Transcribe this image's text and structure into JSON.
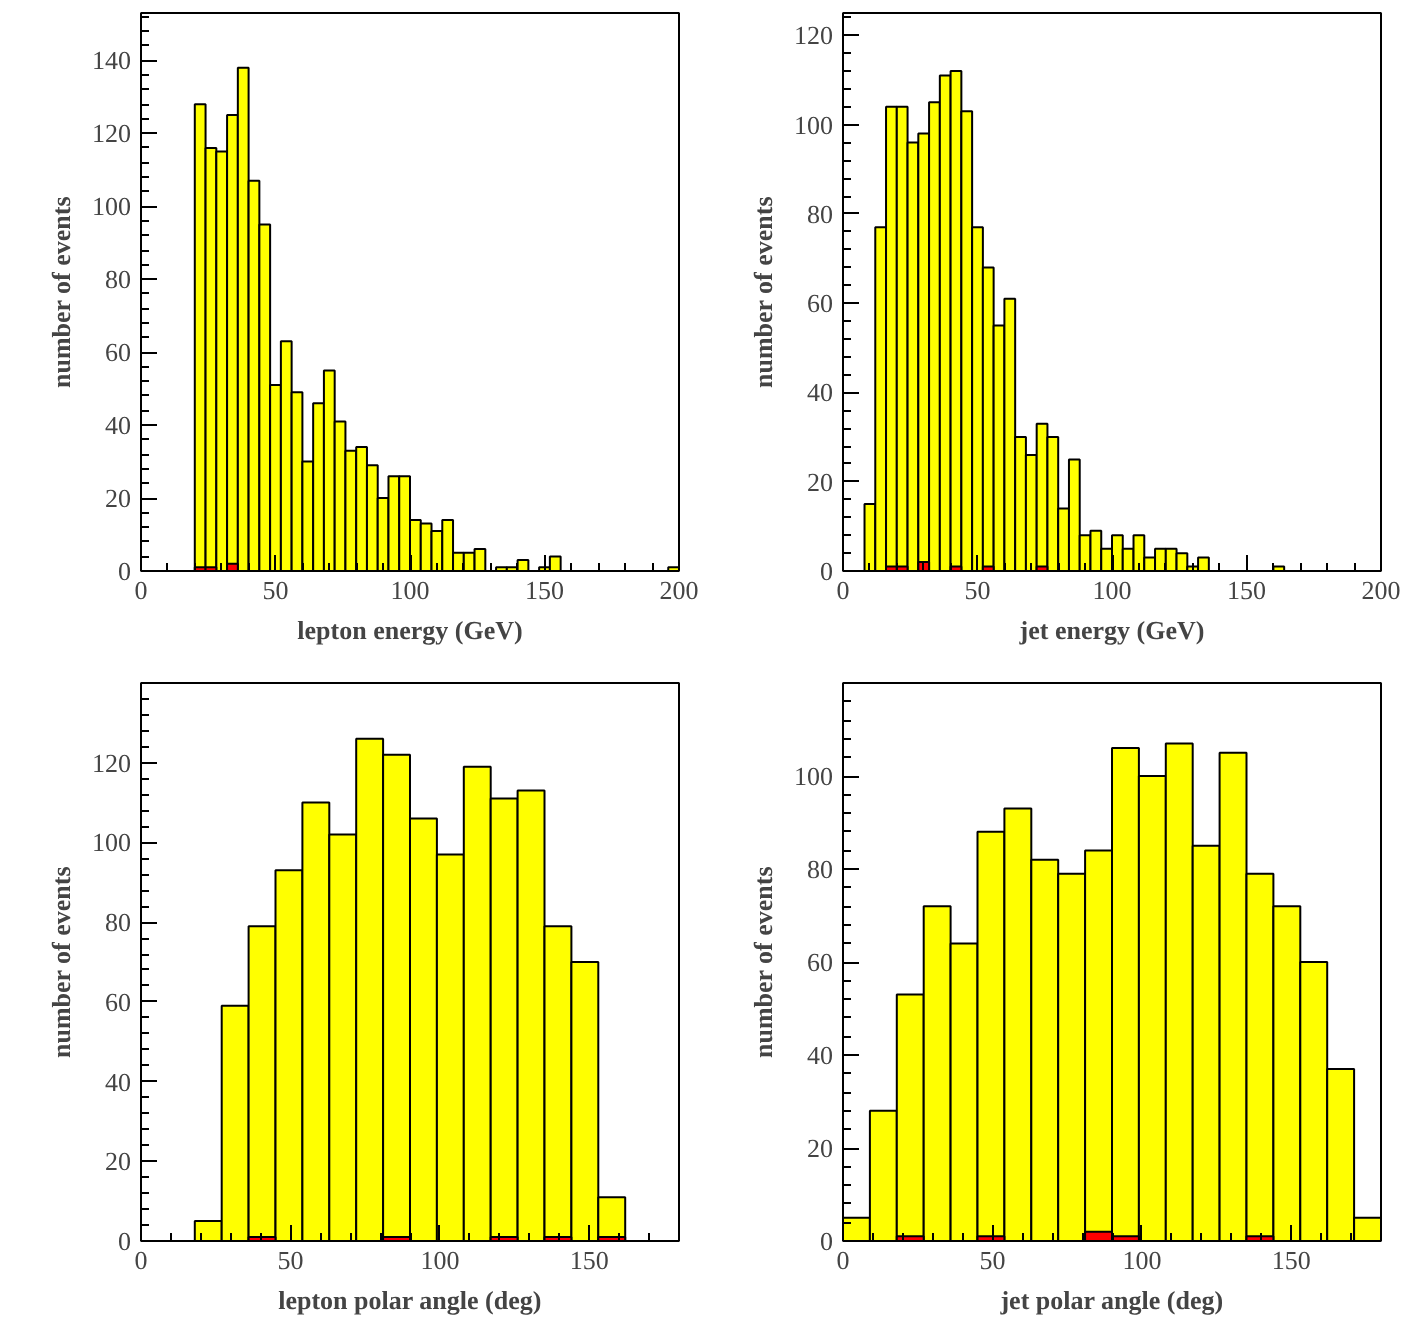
{
  "chart_data": [
    {
      "type": "histogram",
      "xlabel": "lepton energy (GeV)",
      "ylabel": "number of events",
      "xlim": [
        0,
        200
      ],
      "ylim": [
        0,
        153
      ],
      "xticks": [
        0,
        50,
        100,
        150,
        200
      ],
      "yticks": [
        0,
        20,
        40,
        60,
        80,
        100,
        120,
        140
      ],
      "grid": false,
      "bins": [
        20,
        24,
        28,
        32,
        36,
        40,
        44,
        48,
        52,
        56,
        60,
        64,
        68,
        72,
        76,
        80,
        84,
        88,
        92,
        96,
        100,
        104,
        108,
        112,
        116,
        120,
        124,
        128,
        132,
        136,
        140,
        144,
        148,
        152,
        156,
        160,
        164,
        168,
        172,
        176,
        180,
        184,
        188,
        192,
        196,
        200
      ],
      "series": [
        {
          "color": "#ffff00",
          "values": [
            128,
            116,
            115,
            125,
            138,
            107,
            95,
            51,
            63,
            49,
            30,
            46,
            55,
            41,
            33,
            34,
            29,
            20,
            26,
            26,
            14,
            13,
            11,
            14,
            5,
            5,
            6,
            0,
            1,
            1,
            3,
            0,
            1,
            4,
            0,
            0,
            0,
            0,
            0,
            0,
            0,
            0,
            0,
            0,
            1
          ]
        },
        {
          "color": "#ff0000",
          "values": [
            1,
            1,
            0,
            2,
            0,
            0,
            0,
            0,
            0,
            0,
            0,
            0,
            0,
            0,
            0,
            0,
            0,
            0,
            0,
            0,
            0,
            0,
            0,
            0,
            0,
            0,
            0,
            0,
            0,
            0,
            0,
            0,
            0,
            0,
            0,
            0,
            0,
            0,
            0,
            0,
            0,
            0,
            0,
            0,
            0
          ]
        }
      ]
    },
    {
      "type": "histogram",
      "xlabel": "jet energy (GeV)",
      "ylabel": "number of events",
      "xlim": [
        0,
        200
      ],
      "ylim": [
        0,
        125
      ],
      "xticks": [
        0,
        50,
        100,
        150,
        200
      ],
      "yticks": [
        0,
        20,
        40,
        60,
        80,
        100,
        120
      ],
      "grid": false,
      "bins": [
        8,
        12,
        16,
        20,
        24,
        28,
        32,
        36,
        40,
        44,
        48,
        52,
        56,
        60,
        64,
        68,
        72,
        76,
        80,
        84,
        88,
        92,
        96,
        100,
        104,
        108,
        112,
        116,
        120,
        124,
        128,
        132,
        136,
        140,
        144,
        148,
        152,
        156,
        160,
        164,
        168,
        172,
        176,
        180,
        184,
        188,
        192,
        196,
        200
      ],
      "series": [
        {
          "color": "#ffff00",
          "values": [
            15,
            77,
            104,
            104,
            96,
            98,
            105,
            111,
            112,
            103,
            77,
            68,
            55,
            61,
            30,
            26,
            33,
            30,
            14,
            25,
            8,
            9,
            5,
            8,
            5,
            8,
            3,
            5,
            5,
            4,
            1,
            3,
            0,
            0,
            0,
            0,
            0,
            0,
            1,
            0,
            0,
            0,
            0,
            0,
            0,
            0,
            0,
            0
          ]
        },
        {
          "color": "#ff0000",
          "values": [
            0,
            0,
            1,
            1,
            0,
            2,
            0,
            0,
            1,
            0,
            0,
            1,
            0,
            0,
            0,
            0,
            1,
            0,
            0,
            0,
            0,
            0,
            0,
            0,
            0,
            0,
            0,
            0,
            0,
            0,
            0,
            0,
            0,
            0,
            0,
            0,
            0,
            0,
            0,
            0,
            0,
            0,
            0,
            0,
            0,
            0,
            0,
            0
          ]
        }
      ]
    },
    {
      "type": "histogram",
      "xlabel": "lepton polar angle (deg)",
      "ylabel": "number of events",
      "xlim": [
        0,
        180
      ],
      "ylim": [
        0,
        140
      ],
      "xticks": [
        0,
        50,
        100,
        150
      ],
      "yticks": [
        0,
        20,
        40,
        60,
        80,
        100,
        120
      ],
      "grid": false,
      "bins": [
        18,
        27,
        36,
        45,
        54,
        63,
        72,
        81,
        90,
        99,
        108,
        117,
        126,
        135,
        144,
        153,
        162
      ],
      "series": [
        {
          "color": "#ffff00",
          "values": [
            5,
            59,
            79,
            93,
            110,
            102,
            126,
            122,
            106,
            97,
            119,
            111,
            113,
            79,
            70,
            11
          ]
        },
        {
          "color": "#ff0000",
          "values": [
            0,
            0,
            1,
            0,
            0,
            0,
            0,
            1,
            0,
            0,
            0,
            1,
            0,
            1,
            0,
            1
          ]
        }
      ]
    },
    {
      "type": "histogram",
      "xlabel": "jet polar angle (deg)",
      "ylabel": "number of events",
      "xlim": [
        0,
        180
      ],
      "ylim": [
        0,
        120
      ],
      "xticks": [
        0,
        50,
        100,
        150
      ],
      "yticks": [
        0,
        20,
        40,
        60,
        80,
        100
      ],
      "grid": false,
      "bins": [
        0,
        9,
        18,
        27,
        36,
        45,
        54,
        63,
        72,
        81,
        90,
        99,
        108,
        117,
        126,
        135,
        144,
        153,
        162,
        171,
        180
      ],
      "series": [
        {
          "color": "#ffff00",
          "values": [
            5,
            28,
            53,
            72,
            64,
            88,
            93,
            82,
            79,
            84,
            106,
            100,
            107,
            85,
            105,
            79,
            72,
            60,
            37,
            5
          ]
        },
        {
          "color": "#ff0000",
          "values": [
            0,
            0,
            1,
            0,
            0,
            1,
            0,
            0,
            0,
            2,
            1,
            0,
            0,
            0,
            0,
            1,
            0,
            0,
            0,
            0
          ]
        }
      ]
    }
  ]
}
